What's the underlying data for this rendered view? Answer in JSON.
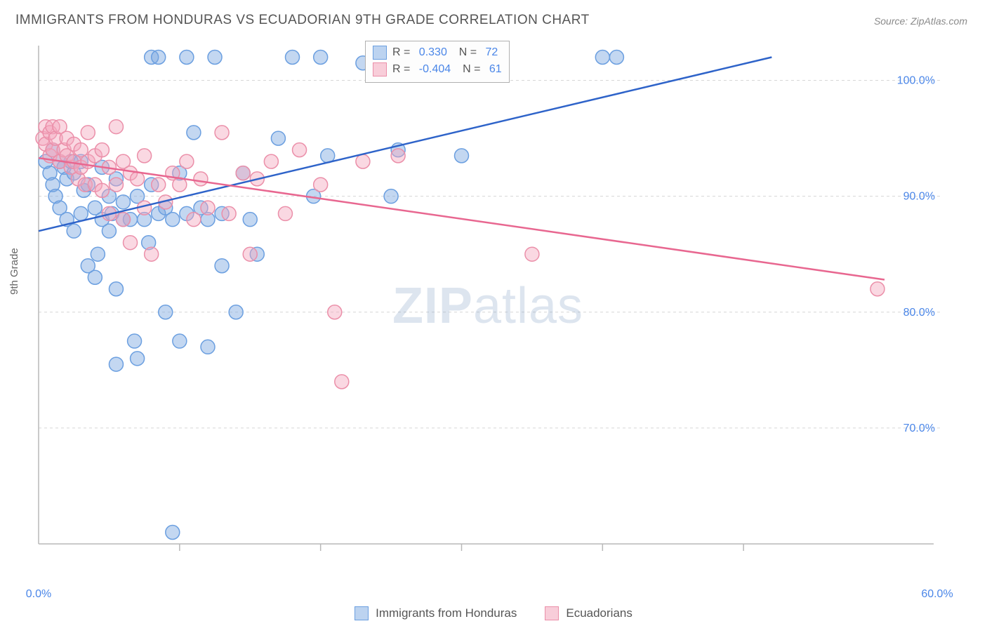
{
  "title": "IMMIGRANTS FROM HONDURAS VS ECUADORIAN 9TH GRADE CORRELATION CHART",
  "source": "Source: ZipAtlas.com",
  "ylabel": "9th Grade",
  "watermark_bold": "ZIP",
  "watermark_rest": "atlas",
  "chart": {
    "type": "scatter",
    "background": "#ffffff",
    "grid_color": "#d6d6d6",
    "grid_dash": "4 4",
    "axis_color": "#b8b8b8",
    "tick_color": "#4a86e8",
    "tick_fontsize": 16,
    "label_fontsize": 15,
    "title_fontsize": 19,
    "xlim": [
      0,
      60
    ],
    "ylim": [
      60,
      103
    ],
    "xticks_major": [
      0,
      60
    ],
    "xticks_minor": [
      10,
      20,
      30,
      40,
      50
    ],
    "yticks": [
      70,
      80,
      90,
      100
    ],
    "marker_radius": 10,
    "marker_stroke_width": 1.5,
    "line_width": 2.5,
    "series": [
      {
        "name": "Immigrants from Honduras",
        "key": "honduras",
        "fill": "rgba(122,167,224,0.45)",
        "stroke": "#6b9fe0",
        "line_color": "#2e63c9",
        "legend_swatch_fill": "#bcd3f0",
        "legend_swatch_stroke": "#6b9fe0",
        "R": "0.330",
        "N": "72",
        "trend": {
          "x1": 0,
          "y1": 87,
          "x2": 52,
          "y2": 102
        },
        "points": [
          [
            0.5,
            93
          ],
          [
            0.8,
            92
          ],
          [
            1,
            91
          ],
          [
            1,
            94
          ],
          [
            1.2,
            90
          ],
          [
            1.5,
            89
          ],
          [
            1.5,
            93
          ],
          [
            1.8,
            92.5
          ],
          [
            2,
            88
          ],
          [
            2,
            91.5
          ],
          [
            2.3,
            93
          ],
          [
            2.5,
            87
          ],
          [
            2.5,
            92
          ],
          [
            3,
            88.5
          ],
          [
            3,
            93
          ],
          [
            3.2,
            90.5
          ],
          [
            3.5,
            84
          ],
          [
            3.5,
            91
          ],
          [
            4,
            83
          ],
          [
            4,
            89
          ],
          [
            4.2,
            85
          ],
          [
            4.5,
            88
          ],
          [
            4.5,
            92.5
          ],
          [
            5,
            87
          ],
          [
            5,
            90
          ],
          [
            5.2,
            88.5
          ],
          [
            5.5,
            82
          ],
          [
            5.5,
            91.5
          ],
          [
            6,
            88
          ],
          [
            6,
            89.5
          ],
          [
            6.5,
            88
          ],
          [
            6.8,
            77.5
          ],
          [
            7,
            76
          ],
          [
            7,
            90
          ],
          [
            7.5,
            88
          ],
          [
            7.8,
            86
          ],
          [
            8,
            91
          ],
          [
            8,
            102
          ],
          [
            8.5,
            102
          ],
          [
            8.5,
            88.5
          ],
          [
            9,
            80
          ],
          [
            9,
            89
          ],
          [
            9.5,
            88
          ],
          [
            10,
            92
          ],
          [
            10,
            77.5
          ],
          [
            10.5,
            102
          ],
          [
            10.5,
            88.5
          ],
          [
            11,
            95.5
          ],
          [
            11.5,
            89
          ],
          [
            12,
            88
          ],
          [
            12,
            77
          ],
          [
            12.5,
            102
          ],
          [
            13,
            84
          ],
          [
            13,
            88.5
          ],
          [
            14,
            80
          ],
          [
            14.5,
            92
          ],
          [
            15,
            88
          ],
          [
            15.5,
            85
          ],
          [
            17,
            95
          ],
          [
            18,
            102
          ],
          [
            19.5,
            90
          ],
          [
            20,
            102
          ],
          [
            20.5,
            93.5
          ],
          [
            23,
            101.5
          ],
          [
            25.5,
            94
          ],
          [
            25,
            90
          ],
          [
            27,
            102
          ],
          [
            30,
            93.5
          ],
          [
            40,
            102
          ],
          [
            41,
            102
          ],
          [
            9.5,
            61
          ],
          [
            5.5,
            75.5
          ]
        ]
      },
      {
        "name": "Ecuadorians",
        "key": "ecuadorians",
        "fill": "rgba(244,169,190,0.45)",
        "stroke": "#eb8fa9",
        "line_color": "#e86790",
        "legend_swatch_fill": "#f8cdd9",
        "legend_swatch_stroke": "#eb8fa9",
        "R": "-0.404",
        "N": "61",
        "trend": {
          "x1": 0,
          "y1": 93.3,
          "x2": 60,
          "y2": 82.8
        },
        "points": [
          [
            0.3,
            95
          ],
          [
            0.5,
            96
          ],
          [
            0.5,
            94.5
          ],
          [
            0.8,
            95.5
          ],
          [
            0.8,
            93.5
          ],
          [
            1,
            96
          ],
          [
            1,
            94
          ],
          [
            1.2,
            95
          ],
          [
            1.5,
            93
          ],
          [
            1.5,
            96
          ],
          [
            1.8,
            94
          ],
          [
            2,
            93.5
          ],
          [
            2,
            95
          ],
          [
            2.3,
            92.5
          ],
          [
            2.5,
            93
          ],
          [
            2.5,
            94.5
          ],
          [
            2.8,
            91.5
          ],
          [
            3,
            92.5
          ],
          [
            3,
            94
          ],
          [
            3.3,
            91
          ],
          [
            3.5,
            93
          ],
          [
            3.5,
            95.5
          ],
          [
            4,
            91
          ],
          [
            4,
            93.5
          ],
          [
            4.5,
            90.5
          ],
          [
            4.5,
            94
          ],
          [
            5,
            88.5
          ],
          [
            5,
            92.5
          ],
          [
            5.5,
            91
          ],
          [
            5.5,
            96
          ],
          [
            6,
            93
          ],
          [
            6,
            88
          ],
          [
            6.5,
            86
          ],
          [
            6.5,
            92
          ],
          [
            7,
            91.5
          ],
          [
            7.5,
            89
          ],
          [
            7.5,
            93.5
          ],
          [
            8,
            85
          ],
          [
            8.5,
            91
          ],
          [
            9,
            89.5
          ],
          [
            9.5,
            92
          ],
          [
            10,
            91
          ],
          [
            10.5,
            93
          ],
          [
            11,
            88
          ],
          [
            11.5,
            91.5
          ],
          [
            12,
            89
          ],
          [
            13,
            95.5
          ],
          [
            13.5,
            88.5
          ],
          [
            14.5,
            92
          ],
          [
            15,
            85
          ],
          [
            15.5,
            91.5
          ],
          [
            16.5,
            93
          ],
          [
            17.5,
            88.5
          ],
          [
            18.5,
            94
          ],
          [
            20,
            91
          ],
          [
            21,
            80
          ],
          [
            23,
            93
          ],
          [
            25.5,
            93.5
          ],
          [
            35,
            85
          ],
          [
            21.5,
            74
          ],
          [
            59.5,
            82
          ]
        ]
      }
    ]
  },
  "legend_bottom": [
    {
      "label": "Immigrants from Honduras",
      "fill": "#bcd3f0",
      "stroke": "#6b9fe0"
    },
    {
      "label": "Ecuadorians",
      "fill": "#f8cdd9",
      "stroke": "#eb8fa9"
    }
  ]
}
